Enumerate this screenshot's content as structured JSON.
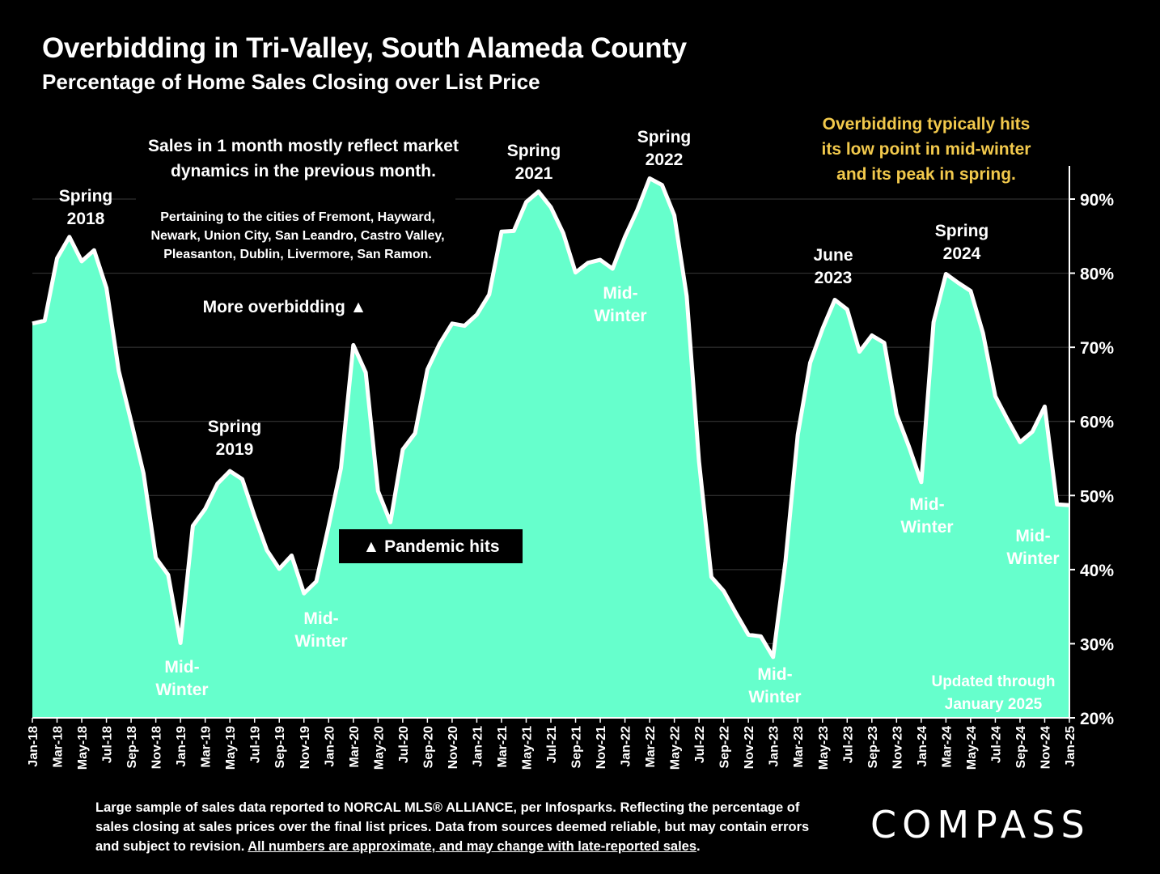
{
  "header": {
    "title": "Overbidding in Tri-Valley, South Alameda County",
    "subtitle": "Percentage of Home Sales Closing over List Price"
  },
  "colors": {
    "background": "#000000",
    "area_fill": "#66FFCC",
    "line": "#FFFFFF",
    "note_text": "#F2C94C"
  },
  "chart_data": {
    "type": "area",
    "x": [
      "Jan-18",
      "Feb-18",
      "Mar-18",
      "Apr-18",
      "May-18",
      "Jun-18",
      "Jul-18",
      "Aug-18",
      "Sep-18",
      "Oct-18",
      "Nov-18",
      "Dec-18",
      "Jan-19",
      "Feb-19",
      "Mar-19",
      "Apr-19",
      "May-19",
      "Jun-19",
      "Jul-19",
      "Aug-19",
      "Sep-19",
      "Oct-19",
      "Nov-19",
      "Dec-19",
      "Jan-20",
      "Feb-20",
      "Mar-20",
      "Apr-20",
      "May-20",
      "Jun-20",
      "Jul-20",
      "Aug-20",
      "Sep-20",
      "Oct-20",
      "Nov-20",
      "Dec-20",
      "Jan-21",
      "Feb-21",
      "Mar-21",
      "Apr-21",
      "May-21",
      "Jun-21",
      "Jul-21",
      "Aug-21",
      "Sep-21",
      "Oct-21",
      "Nov-21",
      "Dec-21",
      "Jan-22",
      "Feb-22",
      "Mar-22",
      "Apr-22",
      "May-22",
      "Jun-22",
      "Jul-22",
      "Aug-22",
      "Sep-22",
      "Oct-22",
      "Nov-22",
      "Dec-22",
      "Jan-23",
      "Feb-23",
      "Mar-23",
      "Apr-23",
      "May-23",
      "Jun-23",
      "Jul-23",
      "Aug-23",
      "Sep-23",
      "Oct-23",
      "Nov-23",
      "Dec-23",
      "Jan-24",
      "Feb-24",
      "Mar-24",
      "Apr-24",
      "May-24",
      "Jun-24",
      "Jul-24",
      "Aug-24",
      "Sep-24",
      "Oct-24",
      "Nov-24",
      "Dec-24",
      "Jan-25"
    ],
    "x_tick_labels": [
      "Jan-18",
      "Mar-18",
      "May-18",
      "Jul-18",
      "Sep-18",
      "Nov-18",
      "Jan-19",
      "Mar-19",
      "May-19",
      "Jul-19",
      "Sep-19",
      "Nov-19",
      "Jan-20",
      "Mar-20",
      "May-20",
      "Jul-20",
      "Sep-20",
      "Nov-20",
      "Jan-21",
      "Mar-21",
      "May-21",
      "Jul-21",
      "Sep-21",
      "Nov-21",
      "Jan-22",
      "Mar-22",
      "May-22",
      "Jul-22",
      "Sep-22",
      "Nov-22",
      "Jan-23",
      "Mar-23",
      "May-23",
      "Jul-23",
      "Sep-23",
      "Nov-23",
      "Jan-24",
      "Mar-24",
      "May-24",
      "Jul-24",
      "Sep-24",
      "Nov-24",
      "Jan-25"
    ],
    "series": [
      {
        "values": [
          73.2,
          73.6,
          82.0,
          84.9,
          81.6,
          83.1,
          78.0,
          66.8,
          60.0,
          53.0,
          41.6,
          39.3,
          30.1,
          45.9,
          48.2,
          51.6,
          53.3,
          52.2,
          47.2,
          42.6,
          40.1,
          41.9,
          36.8,
          38.4,
          45.9,
          53.7,
          70.3,
          66.6,
          50.6,
          46.4,
          56.2,
          58.4,
          67.0,
          70.5,
          73.2,
          72.9,
          74.4,
          77.1,
          85.6,
          85.7,
          89.6,
          91.0,
          88.9,
          85.4,
          80.1,
          81.4,
          81.8,
          80.6,
          84.9,
          88.5,
          92.8,
          91.9,
          87.8,
          76.9,
          54.6,
          39.0,
          37.1,
          34.1,
          31.2,
          31.0,
          28.2,
          41.1,
          58.2,
          67.9,
          72.5,
          76.4,
          75.1,
          69.4,
          71.6,
          70.6,
          61.0,
          56.6,
          51.8,
          73.4,
          79.9,
          78.7,
          77.6,
          71.9,
          63.4,
          60.2,
          57.2,
          58.6,
          62.0,
          48.8,
          48.7
        ]
      }
    ],
    "y_axis": {
      "min": 20,
      "max": 90,
      "ticks": [
        "20%",
        "30%",
        "40%",
        "50%",
        "60%",
        "70%",
        "80%",
        "90%"
      ],
      "position": "right"
    },
    "grid": true,
    "annotations": {
      "spring_2018": [
        "Spring",
        "2018"
      ],
      "winter_2019": [
        "Mid-",
        "Winter"
      ],
      "spring_2019": [
        "Spring",
        "2019"
      ],
      "winter_2020": [
        "Mid-",
        "Winter"
      ],
      "spring_2021": [
        "Spring",
        "2021"
      ],
      "spring_2022": [
        "Spring",
        "2022"
      ],
      "winter_2022": [
        "Mid-",
        "Winter"
      ],
      "winter_2023": [
        "Mid-",
        "Winter"
      ],
      "june_2023": [
        "June",
        "2023"
      ],
      "spring_2024": [
        "Spring",
        "2024"
      ],
      "winter_2024": [
        "Mid-",
        "Winter"
      ],
      "winter_2025": [
        "Mid-",
        "Winter"
      ],
      "lag_note": [
        "Sales in 1 month mostly reflect market",
        "dynamics in the previous month."
      ],
      "cities_note": [
        "Pertaining to the cities of Fremont, Hayward,",
        "Newark, Union City, San Leandro, Castro Valley,",
        "Pleasanton, Dublin, Livermore, San Ramon."
      ],
      "more_overbidding": "More overbidding ▲",
      "pandemic": "▲ Pandemic hits",
      "seasonality_note": [
        "Overbidding typically hits",
        "its low point in mid-winter",
        "and its peak in spring."
      ],
      "updated": [
        "Updated through",
        "January 2025"
      ]
    }
  },
  "footer": {
    "note_main": "Large sample of sales data reported to NORCAL MLS® ALLIANCE, per Infosparks. Reflecting the percentage of sales closing at sales prices over the final list prices. Data from sources deemed reliable, but may contain errors and subject to revision. ",
    "note_underlined": "All numbers are approximate, and may change with late-reported sales",
    "note_end": ".",
    "logo": "COMPASS"
  }
}
